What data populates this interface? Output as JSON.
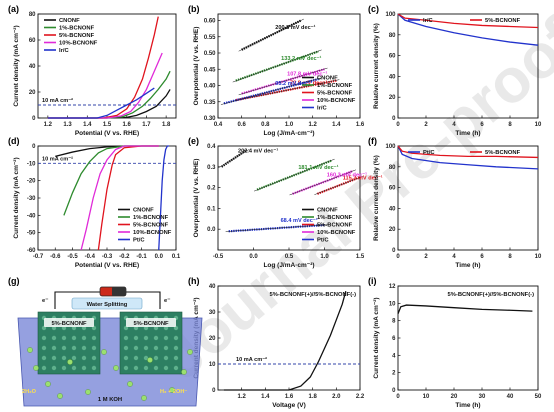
{
  "watermark": "Journal Pre-proof",
  "colors": {
    "CNONF": "#111111",
    "1%-BCNONF": "#2e8b2e",
    "5%-BCNONF": "#e0141e",
    "10%-BCNONF": "#e02ad8",
    "Ir/C": "#2233cc",
    "Pt/C": "#2233cc",
    "dash": "#3344aa"
  },
  "chart_data": [
    {
      "id": "a",
      "panel_label": "(a)",
      "type": "line",
      "xlabel": "Potential (V vs. RHE)",
      "ylabel": "Current density (mA cm⁻²)",
      "xlim": [
        1.15,
        1.85
      ],
      "ylim": [
        0,
        80
      ],
      "xticks": [
        "1.2",
        "1.3",
        "1.4",
        "1.5",
        "1.6",
        "1.7",
        "1.8"
      ],
      "yticks": [
        "0",
        "20",
        "40",
        "60",
        "80"
      ],
      "legend": [
        "CNONF",
        "1%-BCNONF",
        "5%-BCNONF",
        "10%-BCNONF",
        "Ir/C"
      ],
      "legend_position": "top-left",
      "reference_line": {
        "y": 10,
        "label": "10 mA cm⁻²"
      },
      "series": [
        {
          "name": "CNONF",
          "x": [
            1.2,
            1.5,
            1.6,
            1.65,
            1.7,
            1.75,
            1.8,
            1.82
          ],
          "y": [
            0,
            0,
            0.5,
            2,
            5,
            9,
            17,
            22
          ]
        },
        {
          "name": "1%-BCNONF",
          "x": [
            1.2,
            1.5,
            1.58,
            1.63,
            1.68,
            1.72,
            1.76,
            1.8,
            1.82
          ],
          "y": [
            0,
            0,
            1,
            4,
            9,
            15,
            22,
            30,
            36
          ]
        },
        {
          "name": "5%-BCNONF",
          "x": [
            1.2,
            1.48,
            1.55,
            1.6,
            1.64,
            1.68,
            1.71,
            1.74,
            1.76
          ],
          "y": [
            0,
            0,
            2,
            7,
            16,
            30,
            46,
            64,
            78
          ]
        },
        {
          "name": "10%-BCNONF",
          "x": [
            1.2,
            1.5,
            1.57,
            1.62,
            1.66,
            1.7,
            1.74,
            1.78
          ],
          "y": [
            0,
            0,
            1.5,
            5,
            12,
            22,
            36,
            50
          ]
        },
        {
          "name": "Ir/C",
          "x": [
            1.2,
            1.45,
            1.5,
            1.55,
            1.6,
            1.65,
            1.7,
            1.74
          ],
          "y": [
            0,
            0,
            2,
            6,
            10,
            14,
            19,
            23
          ]
        }
      ]
    },
    {
      "id": "b",
      "panel_label": "(b)",
      "type": "scatter",
      "xlabel": "Log (J/mA·cm⁻²)",
      "ylabel": "Overpotential (V vs. RHE)",
      "xlim": [
        0.4,
        1.6
      ],
      "ylim": [
        0.3,
        0.62
      ],
      "xticks": [
        "0.4",
        "0.6",
        "0.8",
        "1.0",
        "1.2",
        "1.4",
        "1.6"
      ],
      "yticks": [
        "0.30",
        "0.35",
        "0.40",
        "0.45",
        "0.50",
        "0.55",
        "0.60"
      ],
      "legend": [
        "CNONF",
        "1%-BCNONF",
        "5%-BCNONF",
        "10%-BCNONF",
        "Ir/C"
      ],
      "legend_position": "bottom-right",
      "series": [
        {
          "name": "CNONF",
          "x": [
            0.6,
            1.1
          ],
          "y": [
            0.51,
            0.6
          ],
          "annotation": "200.8 mV dec⁻¹"
        },
        {
          "name": "1%-BCNONF",
          "x": [
            0.55,
            1.25
          ],
          "y": [
            0.415,
            0.505
          ],
          "annotation": "133.2 mV dec⁻¹"
        },
        {
          "name": "5%-BCNONF",
          "x": [
            0.55,
            1.4
          ],
          "y": [
            0.355,
            0.415
          ],
          "annotation": "72.8 mV dec⁻¹"
        },
        {
          "name": "10%-BCNONF",
          "x": [
            0.6,
            1.3
          ],
          "y": [
            0.375,
            0.45
          ],
          "annotation": "107.8 mV dec⁻¹"
        },
        {
          "name": "Ir/C",
          "x": [
            0.45,
            1.25
          ],
          "y": [
            0.345,
            0.42
          ],
          "annotation": "95.2 mV dec⁻¹"
        }
      ]
    },
    {
      "id": "c",
      "panel_label": "(c)",
      "type": "line",
      "xlabel": "Time (h)",
      "ylabel": "Relative current density (%)",
      "xlim": [
        0,
        10
      ],
      "ylim": [
        0,
        100
      ],
      "xticks": [
        "0",
        "2",
        "4",
        "6",
        "8",
        "10"
      ],
      "yticks": [
        "0",
        "20",
        "40",
        "60",
        "80",
        "100"
      ],
      "legend": [
        "Ir/C",
        "5%-BCNONF"
      ],
      "legend_position": "top-right",
      "series": [
        {
          "name": "Ir/C",
          "x": [
            0,
            0.5,
            2,
            4,
            6,
            8,
            10
          ],
          "y": [
            100,
            94,
            88,
            82,
            77,
            73,
            70
          ]
        },
        {
          "name": "5%-BCNONF",
          "x": [
            0,
            0.5,
            2,
            4,
            6,
            8,
            10
          ],
          "y": [
            100,
            96,
            94,
            91,
            89,
            88,
            87
          ]
        }
      ]
    },
    {
      "id": "d",
      "panel_label": "(d)",
      "type": "line",
      "xlabel": "Potential (V vs. RHE)",
      "ylabel": "Current density (mA cm⁻²)",
      "xlim": [
        -0.7,
        0.1
      ],
      "ylim": [
        -60,
        0
      ],
      "xticks": [
        "-0.7",
        "-0.6",
        "-0.5",
        "-0.4",
        "-0.3",
        "-0.2",
        "-0.1",
        "0.0",
        "0.1"
      ],
      "yticks": [
        "-60",
        "-50",
        "-40",
        "-30",
        "-20",
        "-10",
        "0"
      ],
      "legend": [
        "CNONF",
        "1%-BCNONF",
        "5%-BCNONF",
        "10%-BCNONF",
        "Pt/C"
      ],
      "legend_position": "bottom-right",
      "reference_line": {
        "y": -10,
        "label": "10 mA cm⁻²"
      },
      "series": [
        {
          "name": "CNONF",
          "x": [
            -0.6,
            -0.5,
            -0.4,
            -0.3,
            -0.2,
            0.0
          ],
          "y": [
            -6,
            -3.5,
            -1.5,
            -0.5,
            0,
            0
          ]
        },
        {
          "name": "1%-BCNONF",
          "x": [
            -0.55,
            -0.5,
            -0.45,
            -0.4,
            -0.35,
            -0.3,
            -0.2,
            0.0
          ],
          "y": [
            -40,
            -27,
            -16,
            -9,
            -4,
            -1.5,
            0,
            0
          ]
        },
        {
          "name": "5%-BCNONF",
          "x": [
            -0.35,
            -0.33,
            -0.3,
            -0.27,
            -0.25,
            -0.2,
            -0.1,
            0.0
          ],
          "y": [
            -60,
            -45,
            -25,
            -11,
            -5,
            -1,
            0,
            0
          ]
        },
        {
          "name": "10%-BCNONF",
          "x": [
            -0.45,
            -0.42,
            -0.38,
            -0.34,
            -0.3,
            -0.25,
            -0.2,
            0.0
          ],
          "y": [
            -60,
            -48,
            -30,
            -16,
            -8,
            -2,
            0,
            0
          ]
        },
        {
          "name": "Pt/C",
          "x": [
            0.0,
            0.01,
            0.02,
            0.03,
            0.04,
            0.05,
            0.06
          ],
          "y": [
            -60,
            -40,
            -20,
            -8,
            -2,
            0,
            0
          ]
        }
      ]
    },
    {
      "id": "e",
      "panel_label": "(e)",
      "type": "scatter",
      "xlabel": "Log (J/mA·cm⁻²)",
      "ylabel": "Overpotential (V vs. RHE)",
      "xlim": [
        -0.5,
        1.5
      ],
      "ylim": [
        -0.1,
        0.4
      ],
      "xticks": [
        "-0.5",
        "0.0",
        "0.5",
        "1.0",
        "1.5"
      ],
      "yticks": [
        "0.0",
        "0.1",
        "0.2",
        "0.3",
        "0.4"
      ],
      "legend": [
        "CNONF",
        "1%-BCNONF",
        "5%-BCNONF",
        "10%-BCNONF",
        "Pt/C"
      ],
      "legend_position": "bottom-right",
      "series": [
        {
          "name": "CNONF",
          "x": [
            -0.45,
            -0.1
          ],
          "y": [
            0.3,
            0.38
          ],
          "annotation": "202.4 mV dec⁻¹"
        },
        {
          "name": "1%-BCNONF",
          "x": [
            0.05,
            1.1
          ],
          "y": [
            0.19,
            0.33
          ],
          "annotation": "181.1 mV dec⁻¹"
        },
        {
          "name": "5%-BCNONF",
          "x": [
            0.9,
            1.5
          ],
          "y": [
            0.17,
            0.25
          ],
          "annotation": "115.3 mV dec⁻¹"
        },
        {
          "name": "10%-BCNONF",
          "x": [
            0.55,
            1.4
          ],
          "y": [
            0.17,
            0.28
          ],
          "annotation": "160.3 mV dec⁻¹"
        },
        {
          "name": "Pt/C",
          "x": [
            -0.35,
            1.0
          ],
          "y": [
            -0.01,
            0.02
          ],
          "annotation": "68.4 mV dec⁻¹"
        }
      ]
    },
    {
      "id": "f",
      "panel_label": "(f)",
      "type": "line",
      "xlabel": "Time (h)",
      "ylabel": "Relative current density (%)",
      "xlim": [
        0,
        10
      ],
      "ylim": [
        0,
        100
      ],
      "xticks": [
        "0",
        "2",
        "4",
        "6",
        "8",
        "10"
      ],
      "yticks": [
        "0",
        "20",
        "40",
        "60",
        "80",
        "100"
      ],
      "legend": [
        "Pt/C",
        "5%-BCNONF"
      ],
      "legend_position": "top-right",
      "series": [
        {
          "name": "Pt/C",
          "x": [
            0,
            0.3,
            1,
            3,
            5,
            7,
            10
          ],
          "y": [
            100,
            92,
            88,
            84,
            82,
            80,
            78
          ]
        },
        {
          "name": "5%-BCNONF",
          "x": [
            0,
            0.3,
            1,
            3,
            5,
            7,
            10
          ],
          "y": [
            100,
            95,
            93,
            91,
            90,
            90,
            89
          ]
        }
      ]
    },
    {
      "id": "h",
      "panel_label": "(h)",
      "type": "line",
      "title": "5%-BCNONF(+)//5%-BCNONF(-)",
      "xlabel": "Voltage (V)",
      "ylabel": "Current density (mA cm⁻²)",
      "xlim": [
        1.0,
        2.2
      ],
      "ylim": [
        0,
        40
      ],
      "xticks": [
        "1.2",
        "1.4",
        "1.6",
        "1.8",
        "2.0",
        "2.2"
      ],
      "yticks": [
        "0",
        "10",
        "20",
        "30",
        "40"
      ],
      "reference_line": {
        "y": 10,
        "label": "10 mA cm⁻²"
      },
      "series": [
        {
          "name": "",
          "x": [
            1.05,
            1.6,
            1.7,
            1.78,
            1.85,
            1.9,
            1.95,
            2.0,
            2.05,
            2.08
          ],
          "y": [
            0,
            0,
            1.5,
            5,
            11,
            16,
            21,
            27,
            33,
            38
          ]
        }
      ]
    },
    {
      "id": "i",
      "panel_label": "(i)",
      "type": "line",
      "title": "5%-BCNONF(+)//5%-BCNONF(-)",
      "xlabel": "Time (h)",
      "ylabel": "Current density (mA cm⁻²)",
      "xlim": [
        0,
        50
      ],
      "ylim": [
        0,
        12
      ],
      "xticks": [
        "0",
        "10",
        "20",
        "30",
        "40",
        "50"
      ],
      "yticks": [
        "0",
        "2",
        "4",
        "6",
        "8",
        "10",
        "12"
      ],
      "series": [
        {
          "name": "",
          "x": [
            0,
            1,
            3,
            10,
            20,
            30,
            40,
            48
          ],
          "y": [
            8.8,
            9.6,
            9.8,
            9.7,
            9.5,
            9.3,
            9.2,
            9.1
          ]
        }
      ]
    }
  ],
  "schematic_g": {
    "panel_label": "(g)",
    "title": "Water Splitting",
    "left_electrode": "5%-BCNONF",
    "right_electrode": "5%-BCNONF",
    "electrolyte": "1 M KOH",
    "electron_left": "e⁻",
    "electron_right": "e⁻",
    "reaction_left": "2H₂O",
    "reaction_right": "H₂ + 2OH⁻"
  }
}
